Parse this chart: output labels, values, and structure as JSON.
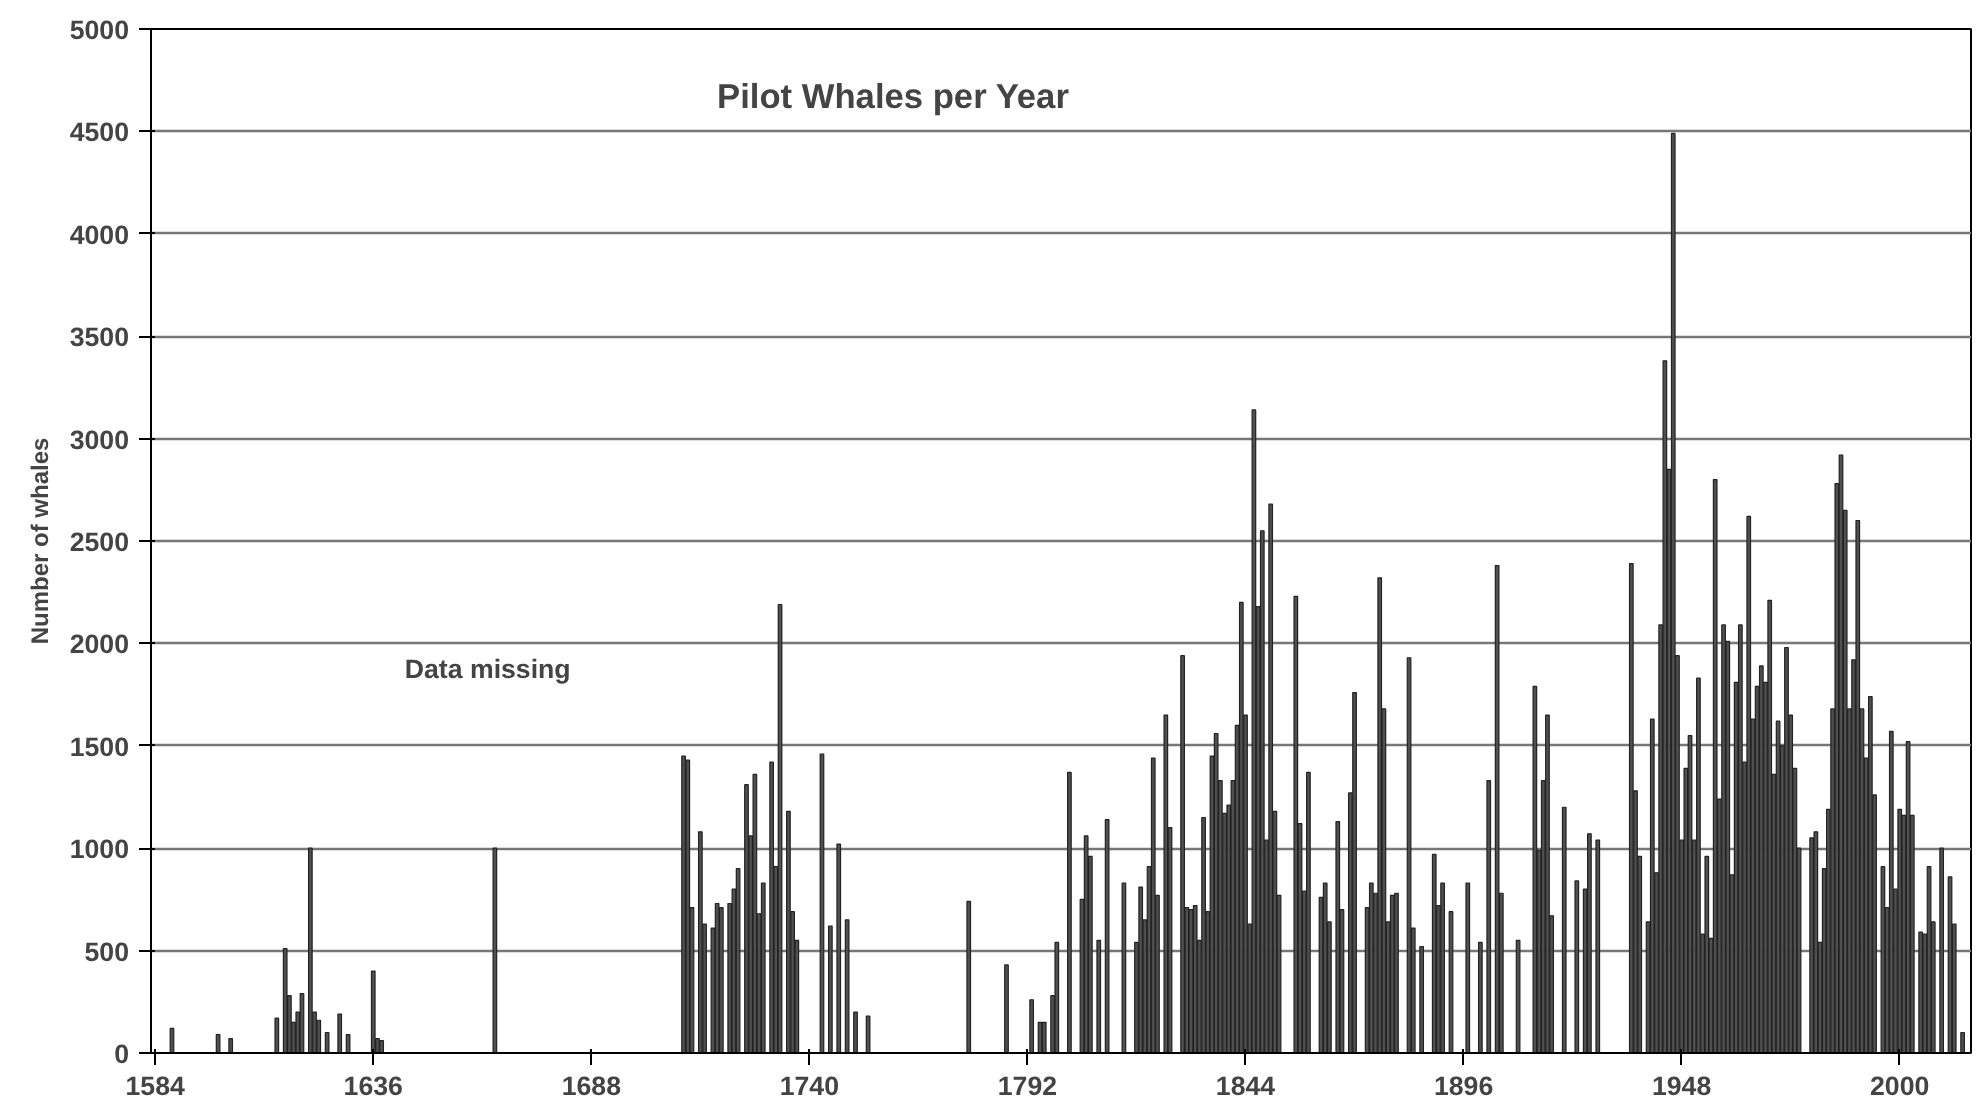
{
  "chart_data": {
    "type": "bar",
    "title": "Pilot Whales per Year",
    "ylabel": "Number of whales",
    "x": [
      1588,
      1599,
      1602,
      1613,
      1615,
      1616,
      1617,
      1618,
      1619,
      1621,
      1622,
      1623,
      1625,
      1628,
      1630,
      1636,
      1637,
      1638,
      1665,
      1710,
      1711,
      1712,
      1714,
      1715,
      1717,
      1718,
      1719,
      1721,
      1722,
      1723,
      1725,
      1726,
      1727,
      1728,
      1729,
      1731,
      1732,
      1733,
      1735,
      1736,
      1737,
      1743,
      1745,
      1747,
      1749,
      1751,
      1754,
      1778,
      1787,
      1793,
      1795,
      1796,
      1798,
      1799,
      1802,
      1805,
      1806,
      1807,
      1809,
      1811,
      1815,
      1818,
      1819,
      1820,
      1821,
      1822,
      1823,
      1825,
      1826,
      1829,
      1830,
      1831,
      1832,
      1833,
      1834,
      1835,
      1836,
      1837,
      1838,
      1839,
      1840,
      1841,
      1842,
      1843,
      1844,
      1845,
      1846,
      1847,
      1848,
      1849,
      1850,
      1851,
      1852,
      1856,
      1857,
      1858,
      1859,
      1862,
      1863,
      1864,
      1866,
      1867,
      1869,
      1870,
      1873,
      1874,
      1875,
      1876,
      1877,
      1878,
      1879,
      1880,
      1883,
      1884,
      1886,
      1889,
      1890,
      1891,
      1893,
      1897,
      1900,
      1902,
      1904,
      1905,
      1909,
      1913,
      1914,
      1915,
      1916,
      1917,
      1920,
      1923,
      1925,
      1926,
      1928,
      1936,
      1937,
      1938,
      1940,
      1941,
      1942,
      1943,
      1944,
      1945,
      1946,
      1947,
      1948,
      1949,
      1950,
      1951,
      1952,
      1953,
      1954,
      1955,
      1956,
      1957,
      1958,
      1959,
      1960,
      1961,
      1962,
      1963,
      1964,
      1965,
      1966,
      1967,
      1968,
      1969,
      1970,
      1971,
      1972,
      1973,
      1974,
      1975,
      1976,
      1979,
      1980,
      1981,
      1982,
      1983,
      1984,
      1985,
      1986,
      1987,
      1988,
      1989,
      1990,
      1991,
      1992,
      1993,
      1994,
      1996,
      1997,
      1998,
      1999,
      2000,
      2001,
      2002,
      2003,
      2005,
      2006,
      2007,
      2008,
      2010,
      2012,
      2013,
      2015
    ],
    "values": [
      120,
      90,
      70,
      170,
      510,
      280,
      150,
      200,
      290,
      1000,
      200,
      160,
      100,
      190,
      90,
      400,
      70,
      60,
      1000,
      1450,
      1430,
      710,
      1080,
      630,
      610,
      730,
      710,
      730,
      800,
      900,
      1310,
      1060,
      1360,
      680,
      830,
      1420,
      910,
      2190,
      1180,
      690,
      550,
      1460,
      620,
      1020,
      650,
      200,
      180,
      740,
      430,
      260,
      150,
      150,
      280,
      540,
      1370,
      750,
      1060,
      960,
      550,
      1140,
      830,
      540,
      810,
      650,
      910,
      1440,
      770,
      1650,
      1100,
      1940,
      710,
      700,
      720,
      550,
      1150,
      690,
      1450,
      1560,
      1330,
      1170,
      1210,
      1330,
      1600,
      2200,
      1650,
      630,
      3140,
      2180,
      2550,
      1040,
      2680,
      1180,
      770,
      2230,
      1120,
      790,
      1370,
      760,
      830,
      640,
      1130,
      700,
      1270,
      1760,
      710,
      830,
      780,
      2320,
      1680,
      640,
      770,
      780,
      1930,
      610,
      520,
      970,
      720,
      830,
      690,
      830,
      540,
      1330,
      2380,
      780,
      550,
      1790,
      990,
      1330,
      1650,
      670,
      1200,
      840,
      800,
      1070,
      1040,
      2390,
      1280,
      960,
      640,
      1630,
      880,
      2090,
      3380,
      2850,
      4490,
      1940,
      1040,
      1390,
      1550,
      1040,
      1830,
      580,
      960,
      560,
      2800,
      1240,
      2090,
      2010,
      870,
      1810,
      2090,
      1420,
      2620,
      1630,
      1790,
      1890,
      1810,
      2210,
      1360,
      1620,
      1500,
      1980,
      1650,
      1390,
      1000,
      1050,
      1080,
      540,
      900,
      1190,
      1680,
      2780,
      2920,
      2650,
      1680,
      1920,
      2600,
      1680,
      1440,
      1740,
      1260,
      910,
      710,
      1570,
      800,
      1190,
      1160,
      1520,
      1160,
      590,
      580,
      910,
      640,
      1000,
      860,
      630,
      100
    ],
    "color": "#505050",
    "xlim": [
      1583,
      2017
    ],
    "xticks": [
      1584,
      1636,
      1688,
      1740,
      1792,
      1844,
      1896,
      1948,
      2000
    ],
    "ylim": [
      0,
      5000
    ],
    "yticks": [
      0,
      500,
      1000,
      1500,
      2000,
      2500,
      3000,
      3500,
      4000,
      4500,
      5000
    ],
    "grid": "y",
    "annotations": [
      "Data missing"
    ]
  }
}
